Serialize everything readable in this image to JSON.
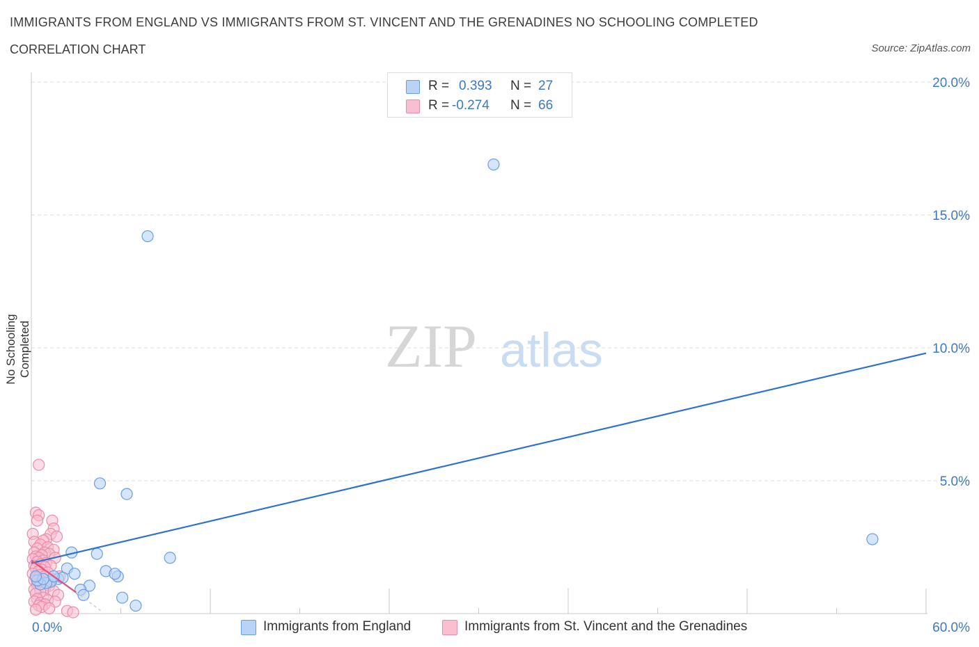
{
  "title": "IMMIGRANTS FROM ENGLAND VS IMMIGRANTS FROM ST. VINCENT AND THE GRENADINES NO SCHOOLING COMPLETED",
  "subtitle": "CORRELATION CHART",
  "source": "Source: ZipAtlas.com",
  "watermark": {
    "zip": "ZIP",
    "atlas": "atlas"
  },
  "legend_top": {
    "rows": [
      {
        "r_label": "R =",
        "r_value": "0.393",
        "n_label": "N =",
        "n_value": "27"
      },
      {
        "r_label": "R =",
        "r_value": "-0.274",
        "n_label": "N =",
        "n_value": "66"
      }
    ]
  },
  "legend_bottom": {
    "england": "Immigrants from England",
    "stvincent": "Immigrants from St. Vincent and the Grenadines"
  },
  "colors": {
    "england_fill": "#b9d3f6",
    "england_stroke": "#6a9de0",
    "england_line": "#2f72cc",
    "stvincent_fill": "#f7bfd0",
    "stvincent_stroke": "#ec8aa8",
    "stvincent_line": "#e0507e",
    "axis_text": "#3a78c9",
    "grid": "#dcdcdc"
  },
  "chart_data": {
    "type": "scatter",
    "xlabel": "",
    "ylabel": "No Schooling Completed",
    "xlim": [
      0,
      60
    ],
    "ylim": [
      0,
      20
    ],
    "x_tick_labels": [
      "0.0%",
      "60.0%"
    ],
    "y_ticks": [
      5,
      10,
      15,
      20
    ],
    "y_tick_labels": [
      "5.0%",
      "10.0%",
      "15.0%",
      "20.0%"
    ],
    "series": [
      {
        "name": "Immigrants from England",
        "r": 0.393,
        "n": 27,
        "trend": {
          "x": [
            0,
            60
          ],
          "y": [
            1.9,
            9.8
          ],
          "style": "solid"
        },
        "points": [
          [
            31.0,
            16.9
          ],
          [
            7.8,
            14.2
          ],
          [
            4.6,
            4.9
          ],
          [
            6.4,
            4.5
          ],
          [
            56.4,
            2.8
          ],
          [
            9.3,
            2.1
          ],
          [
            2.7,
            2.3
          ],
          [
            4.4,
            2.25
          ],
          [
            5.0,
            1.6
          ],
          [
            5.8,
            1.4
          ],
          [
            5.6,
            1.5
          ],
          [
            2.4,
            1.7
          ],
          [
            2.9,
            1.5
          ],
          [
            1.8,
            1.3
          ],
          [
            2.1,
            1.35
          ],
          [
            1.3,
            1.2
          ],
          [
            1.0,
            1.15
          ],
          [
            1.5,
            1.4
          ],
          [
            3.9,
            1.05
          ],
          [
            3.3,
            0.9
          ],
          [
            3.5,
            0.7
          ],
          [
            6.1,
            0.6
          ],
          [
            7.0,
            0.3
          ],
          [
            0.6,
            1.1
          ],
          [
            0.4,
            1.25
          ],
          [
            0.8,
            1.3
          ],
          [
            0.3,
            1.4
          ]
        ]
      },
      {
        "name": "Immigrants from St. Vincent and the Grenadines",
        "r": -0.274,
        "n": 66,
        "trend": {
          "x": [
            0,
            3.0
          ],
          "y": [
            2.0,
            0.8
          ],
          "style": "solid",
          "dash_x": [
            3.0,
            4.8
          ],
          "dash_y": [
            0.8,
            0.05
          ]
        },
        "points": [
          [
            0.5,
            5.6
          ],
          [
            0.3,
            3.8
          ],
          [
            0.5,
            3.7
          ],
          [
            0.4,
            3.5
          ],
          [
            1.4,
            3.5
          ],
          [
            1.5,
            3.2
          ],
          [
            1.3,
            3.0
          ],
          [
            0.1,
            3.0
          ],
          [
            1.0,
            2.8
          ],
          [
            1.7,
            2.9
          ],
          [
            0.8,
            2.75
          ],
          [
            0.2,
            2.7
          ],
          [
            0.6,
            2.6
          ],
          [
            1.1,
            2.5
          ],
          [
            0.4,
            2.45
          ],
          [
            1.5,
            2.4
          ],
          [
            0.9,
            2.3
          ],
          [
            0.2,
            2.3
          ],
          [
            1.2,
            2.25
          ],
          [
            0.7,
            2.2
          ],
          [
            0.3,
            2.15
          ],
          [
            0.5,
            2.1
          ],
          [
            1.6,
            2.1
          ],
          [
            0.1,
            2.05
          ],
          [
            0.8,
            2.0
          ],
          [
            0.4,
            1.95
          ],
          [
            1.0,
            1.9
          ],
          [
            0.6,
            1.85
          ],
          [
            0.2,
            1.8
          ],
          [
            1.3,
            1.8
          ],
          [
            0.9,
            1.75
          ],
          [
            0.3,
            1.7
          ],
          [
            0.7,
            1.65
          ],
          [
            0.5,
            1.6
          ],
          [
            1.1,
            1.55
          ],
          [
            0.1,
            1.5
          ],
          [
            0.6,
            1.45
          ],
          [
            0.9,
            1.4
          ],
          [
            0.3,
            1.35
          ],
          [
            1.4,
            1.3
          ],
          [
            0.2,
            1.25
          ],
          [
            0.7,
            1.2
          ],
          [
            1.0,
            1.15
          ],
          [
            0.4,
            1.1
          ],
          [
            1.2,
            1.05
          ],
          [
            0.5,
            1.0
          ],
          [
            0.9,
            0.95
          ],
          [
            0.2,
            0.9
          ],
          [
            1.5,
            0.85
          ],
          [
            0.6,
            0.8
          ],
          [
            0.3,
            0.75
          ],
          [
            1.8,
            0.7
          ],
          [
            0.8,
            0.6
          ],
          [
            0.4,
            0.55
          ],
          [
            1.1,
            0.5
          ],
          [
            0.2,
            0.45
          ],
          [
            0.6,
            0.4
          ],
          [
            1.6,
            0.45
          ],
          [
            0.9,
            0.35
          ],
          [
            0.5,
            0.3
          ],
          [
            0.7,
            0.25
          ],
          [
            1.2,
            0.2
          ],
          [
            0.3,
            0.15
          ],
          [
            2.4,
            0.1
          ],
          [
            2.8,
            0.05
          ],
          [
            1.9,
            1.4
          ]
        ]
      }
    ]
  }
}
